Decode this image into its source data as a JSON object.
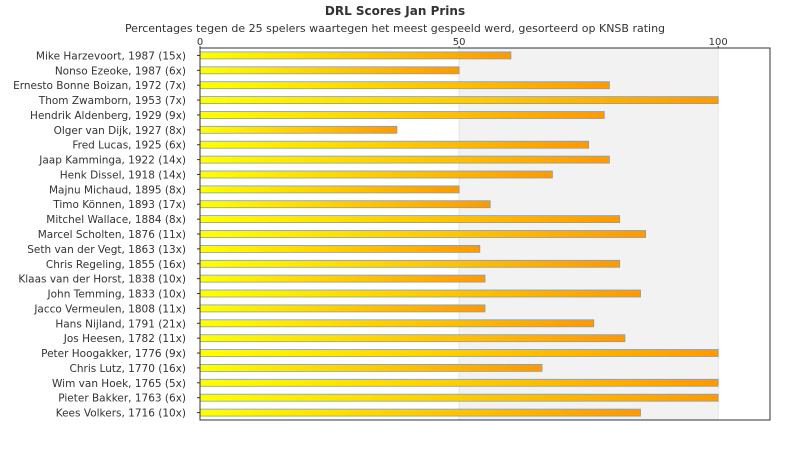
{
  "chart_data": {
    "type": "bar",
    "orientation": "horizontal",
    "title": "DRL Scores Jan Prins",
    "subtitle": "Percentages tegen de 25 spelers waartegen het meest gespeeld werd, gesorteerd op KNSB rating",
    "xlabel": "",
    "ylabel": "",
    "xlim": [
      0,
      110
    ],
    "xticks": [
      0,
      50,
      100
    ],
    "grid": true,
    "categories": [
      "Mike Harzevoort, 1987 (15x)",
      "Nonso Ezeoke, 1987 (6x)",
      "Ernesto Bonne Boizan, 1972 (7x)",
      "Thom Zwamborn, 1953 (7x)",
      "Hendrik Aldenberg, 1929 (9x)",
      "Olger van Dijk, 1927 (8x)",
      "Fred Lucas, 1925 (6x)",
      "Jaap Kamminga, 1922 (14x)",
      "Henk Dissel, 1918 (14x)",
      "Majnu Michaud, 1895 (8x)",
      "Timo Können, 1893 (17x)",
      "Mitchel Wallace, 1884 (8x)",
      "Marcel Scholten, 1876 (11x)",
      "Seth van der Vegt, 1863 (13x)",
      "Chris Regeling, 1855 (16x)",
      "Klaas van der Horst, 1838 (10x)",
      "John Temming, 1833 (10x)",
      "Jacco Vermeulen, 1808 (11x)",
      "Hans Nijland, 1791 (21x)",
      "Jos Heesen, 1782 (11x)",
      "Peter Hoogakker, 1776 (9x)",
      "Chris Lutz, 1770 (16x)",
      "Wim van Hoek, 1765 (5x)",
      "Pieter Bakker, 1763 (6x)",
      "Kees Volkers, 1716 (10x)"
    ],
    "values": [
      60,
      50,
      79,
      100,
      78,
      38,
      75,
      79,
      68,
      50,
      56,
      81,
      86,
      54,
      81,
      55,
      85,
      55,
      76,
      82,
      100,
      66,
      100,
      100,
      85
    ],
    "colors": {
      "bar_start": "#ffff00",
      "bar_end": "#ff9900",
      "bar_stroke": "#7f9fbf",
      "plot_border": "#333333",
      "band_shade": "#f2f2f2",
      "grid_line": "#e4e4e4"
    }
  }
}
